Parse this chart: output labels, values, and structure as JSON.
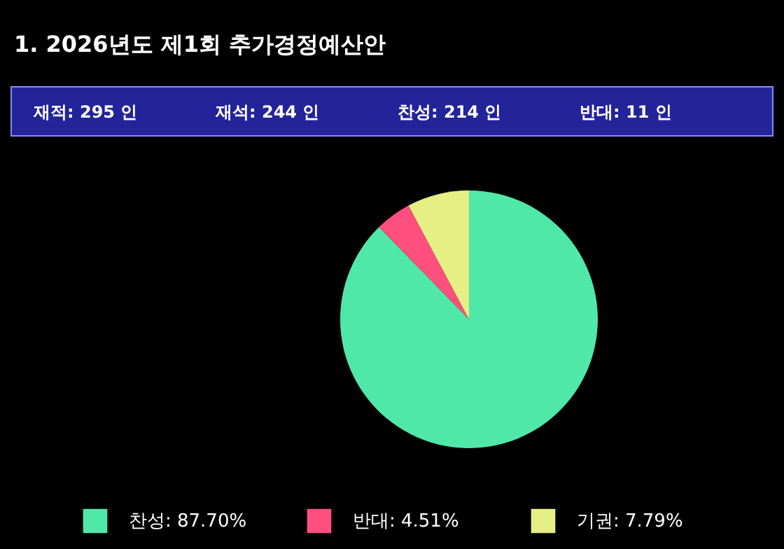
{
  "chart_data": {
    "type": "pie",
    "title": "1. 2026년도 제1회 추가경정예산안",
    "annotations": [
      "재적: 295 인",
      "재석: 244 인",
      "찬성: 214 인",
      "반대: 11 인"
    ],
    "categories": [
      "찬성",
      "반대",
      "기권"
    ],
    "values": [
      87.7,
      4.51,
      7.79
    ],
    "value_labels": [
      "87.70%",
      "4.51%",
      "7.79%"
    ],
    "colors": [
      "#4fe8a8",
      "#ff4f7f",
      "#e6ef84"
    ],
    "legend": "bottom"
  }
}
